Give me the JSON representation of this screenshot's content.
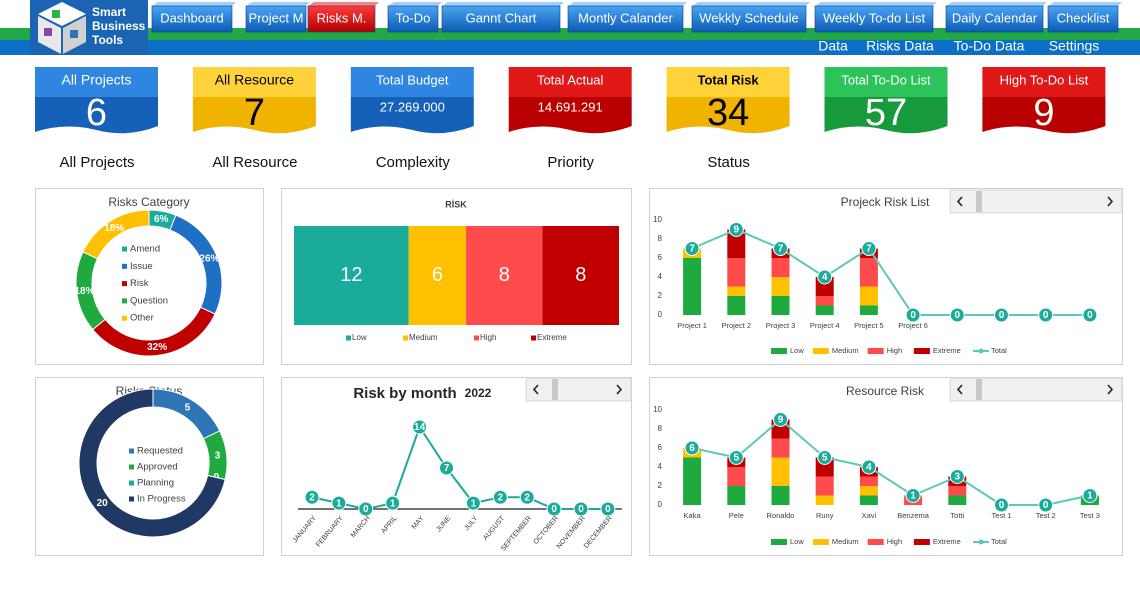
{
  "header": {
    "logo": [
      "Smart",
      "Business",
      "Tools"
    ],
    "tabs": [
      "Dashboard",
      "Project M",
      "Risks M.",
      "To-Do",
      "Gannt Chart",
      "Montly Calander",
      "Wekkly Schedule",
      "Weekly To-do List",
      "Daily Calendar",
      "Checklist"
    ],
    "links": [
      "Data",
      "Risks Data",
      "To-Do Data",
      "Settings"
    ]
  },
  "kpis": [
    {
      "label": "All Projects",
      "value": 6
    },
    {
      "label": "All Resource",
      "value": 7
    },
    {
      "label": "Total Budget",
      "value": "27.269.000"
    },
    {
      "label": "Total Actual",
      "value": "14.691.291"
    },
    {
      "label": "Total Risk",
      "value": 34
    },
    {
      "label": "Total To-Do List",
      "value": 57
    },
    {
      "label": "High To-Do List",
      "value": 9
    }
  ],
  "filters": [
    "All Projects",
    "All Resource",
    "Complexity",
    "Priority",
    "Status"
  ],
  "chart_data": [
    {
      "type": "donut",
      "title": "Risks Category",
      "categories": [
        "Amend",
        "Issue",
        "Risk",
        "Question",
        "Other"
      ],
      "values": [
        6,
        26,
        32,
        18,
        18
      ],
      "value_labels": [
        "6%",
        "26%",
        "32%",
        "18%",
        "18%"
      ],
      "colors": [
        "#1aab9b",
        "#1f6fc5",
        "#c00000",
        "#1faa3f",
        "#ffc000"
      ]
    },
    {
      "type": "stacked-hbar",
      "title": "RİSK",
      "series": [
        {
          "name": "Low",
          "color": "#1aab9b",
          "values": [
            12
          ]
        },
        {
          "name": "Medium",
          "color": "#ffc000",
          "values": [
            6
          ]
        },
        {
          "name": "High",
          "color": "#ff4b4b",
          "values": [
            8
          ]
        },
        {
          "name": "Extreme",
          "color": "#c00000",
          "values": [
            8
          ]
        }
      ]
    },
    {
      "type": "combo",
      "title": "Projeck Risk List",
      "categories": [
        "Project 1",
        "Project 2",
        "Project 3",
        "Project 4",
        "Project 5",
        "Project 6",
        null,
        null,
        null,
        null
      ],
      "series": [
        {
          "name": "Low",
          "color": "#1faa3f",
          "values": [
            6,
            2,
            2,
            1,
            1,
            0,
            0,
            0,
            0,
            0
          ]
        },
        {
          "name": "Medium",
          "color": "#ffc000",
          "values": [
            1,
            1,
            2,
            0,
            2,
            0,
            0,
            0,
            0,
            0
          ]
        },
        {
          "name": "High",
          "color": "#ff4b4b",
          "values": [
            0,
            3,
            2,
            1,
            3,
            0,
            0,
            0,
            0,
            0
          ]
        },
        {
          "name": "Extreme",
          "color": "#c00000",
          "values": [
            0,
            3,
            1,
            2,
            1,
            0,
            0,
            0,
            0,
            0
          ]
        },
        {
          "name": "Total",
          "type": "line",
          "color": "#5cc9b8",
          "values": [
            7,
            9,
            7,
            4,
            7,
            0,
            0,
            0,
            0,
            0
          ]
        }
      ],
      "ylim": [
        0,
        10
      ],
      "yticks": [
        0,
        2,
        4,
        6,
        8,
        10
      ]
    },
    {
      "type": "donut",
      "title": "Risks Status",
      "categories": [
        "Requested",
        "Approved",
        "Planning",
        "In Progress"
      ],
      "values": [
        5,
        3,
        0,
        20
      ],
      "colors": [
        "#2e75b6",
        "#1faa3f",
        "#1aab9b",
        "#1f3864"
      ]
    },
    {
      "type": "line",
      "title": "Risk by month",
      "subtitle": "2022",
      "categories": [
        "JANUARY",
        "FEBRUARY",
        "MARCH",
        "APRIL",
        "MAY",
        "JUNE",
        "JULY",
        "AUGUST",
        "SEPTEMBER",
        "OCTOBER",
        "NOVEMBER",
        "DECEMBER"
      ],
      "values": [
        2,
        1,
        0,
        1,
        14,
        7,
        1,
        2,
        2,
        0,
        0,
        0
      ],
      "color": "#1aab9b"
    },
    {
      "type": "combo",
      "title": "Resource Risk",
      "categories": [
        "Kaka",
        "Pele",
        "Ronaldo",
        "Runy",
        "Xavi",
        "Benzema",
        "Totti",
        "Test 1",
        "Test 2",
        "Test 3"
      ],
      "series": [
        {
          "name": "Low",
          "color": "#1faa3f",
          "values": [
            5,
            2,
            2,
            0,
            1,
            0,
            1,
            0,
            0,
            1
          ]
        },
        {
          "name": "Medium",
          "color": "#ffc000",
          "values": [
            1,
            0,
            3,
            1,
            1,
            0,
            0,
            0,
            0,
            0
          ]
        },
        {
          "name": "High",
          "color": "#ff4b4b",
          "values": [
            0,
            2,
            2,
            2,
            1,
            1,
            1,
            0,
            0,
            0
          ]
        },
        {
          "name": "Extreme",
          "color": "#c00000",
          "values": [
            0,
            1,
            2,
            2,
            1,
            0,
            1,
            0,
            0,
            0
          ]
        },
        {
          "name": "Total",
          "type": "line",
          "color": "#5cc9b8",
          "values": [
            6,
            5,
            9,
            5,
            4,
            1,
            3,
            0,
            0,
            1
          ]
        }
      ],
      "ylim": [
        0,
        10
      ],
      "yticks": [
        0,
        2,
        4,
        6,
        8,
        10
      ]
    }
  ]
}
